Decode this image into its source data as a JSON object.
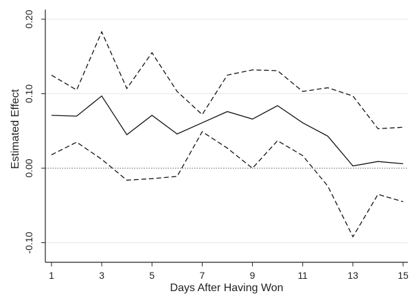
{
  "chart_data": {
    "type": "line",
    "title": "",
    "xlabel": "Days After Having Won",
    "ylabel": "Estimated Effect",
    "xlim": [
      1,
      15
    ],
    "ylim": [
      -0.12,
      0.2
    ],
    "x_ticks": [
      1,
      3,
      5,
      7,
      9,
      11,
      13,
      15
    ],
    "x_tick_labels": [
      "1",
      "3",
      "5",
      "7",
      "9",
      "11",
      "13",
      "15"
    ],
    "y_ticks": [
      -0.1,
      0.0,
      0.1,
      0.2
    ],
    "y_tick_labels": [
      "-0.10",
      "0.00",
      "0.10",
      "0.20"
    ],
    "grid": "horizontal",
    "reference_line": 0,
    "x": [
      1,
      2,
      3,
      4,
      5,
      6,
      7,
      8,
      9,
      10,
      11,
      12,
      13,
      14,
      15
    ],
    "series": [
      {
        "style": "solid",
        "values": [
          0.071,
          0.07,
          0.097,
          0.045,
          0.071,
          0.046,
          0.061,
          0.076,
          0.066,
          0.084,
          0.061,
          0.043,
          0.003,
          0.009,
          0.006
        ]
      },
      {
        "style": "dashed",
        "values": [
          0.125,
          0.105,
          0.183,
          0.107,
          0.155,
          0.103,
          0.072,
          0.125,
          0.132,
          0.131,
          0.103,
          0.108,
          0.097,
          0.053,
          0.055
        ]
      },
      {
        "style": "dashed",
        "values": [
          0.018,
          0.035,
          0.012,
          -0.016,
          -0.014,
          -0.011,
          0.049,
          0.027,
          0.0,
          0.037,
          0.017,
          -0.024,
          -0.092,
          -0.035,
          -0.045
        ]
      }
    ],
    "colors": {
      "line": "#111111",
      "grid": "#e6e6e6",
      "axis": "#222222",
      "reference": "#555555"
    }
  }
}
